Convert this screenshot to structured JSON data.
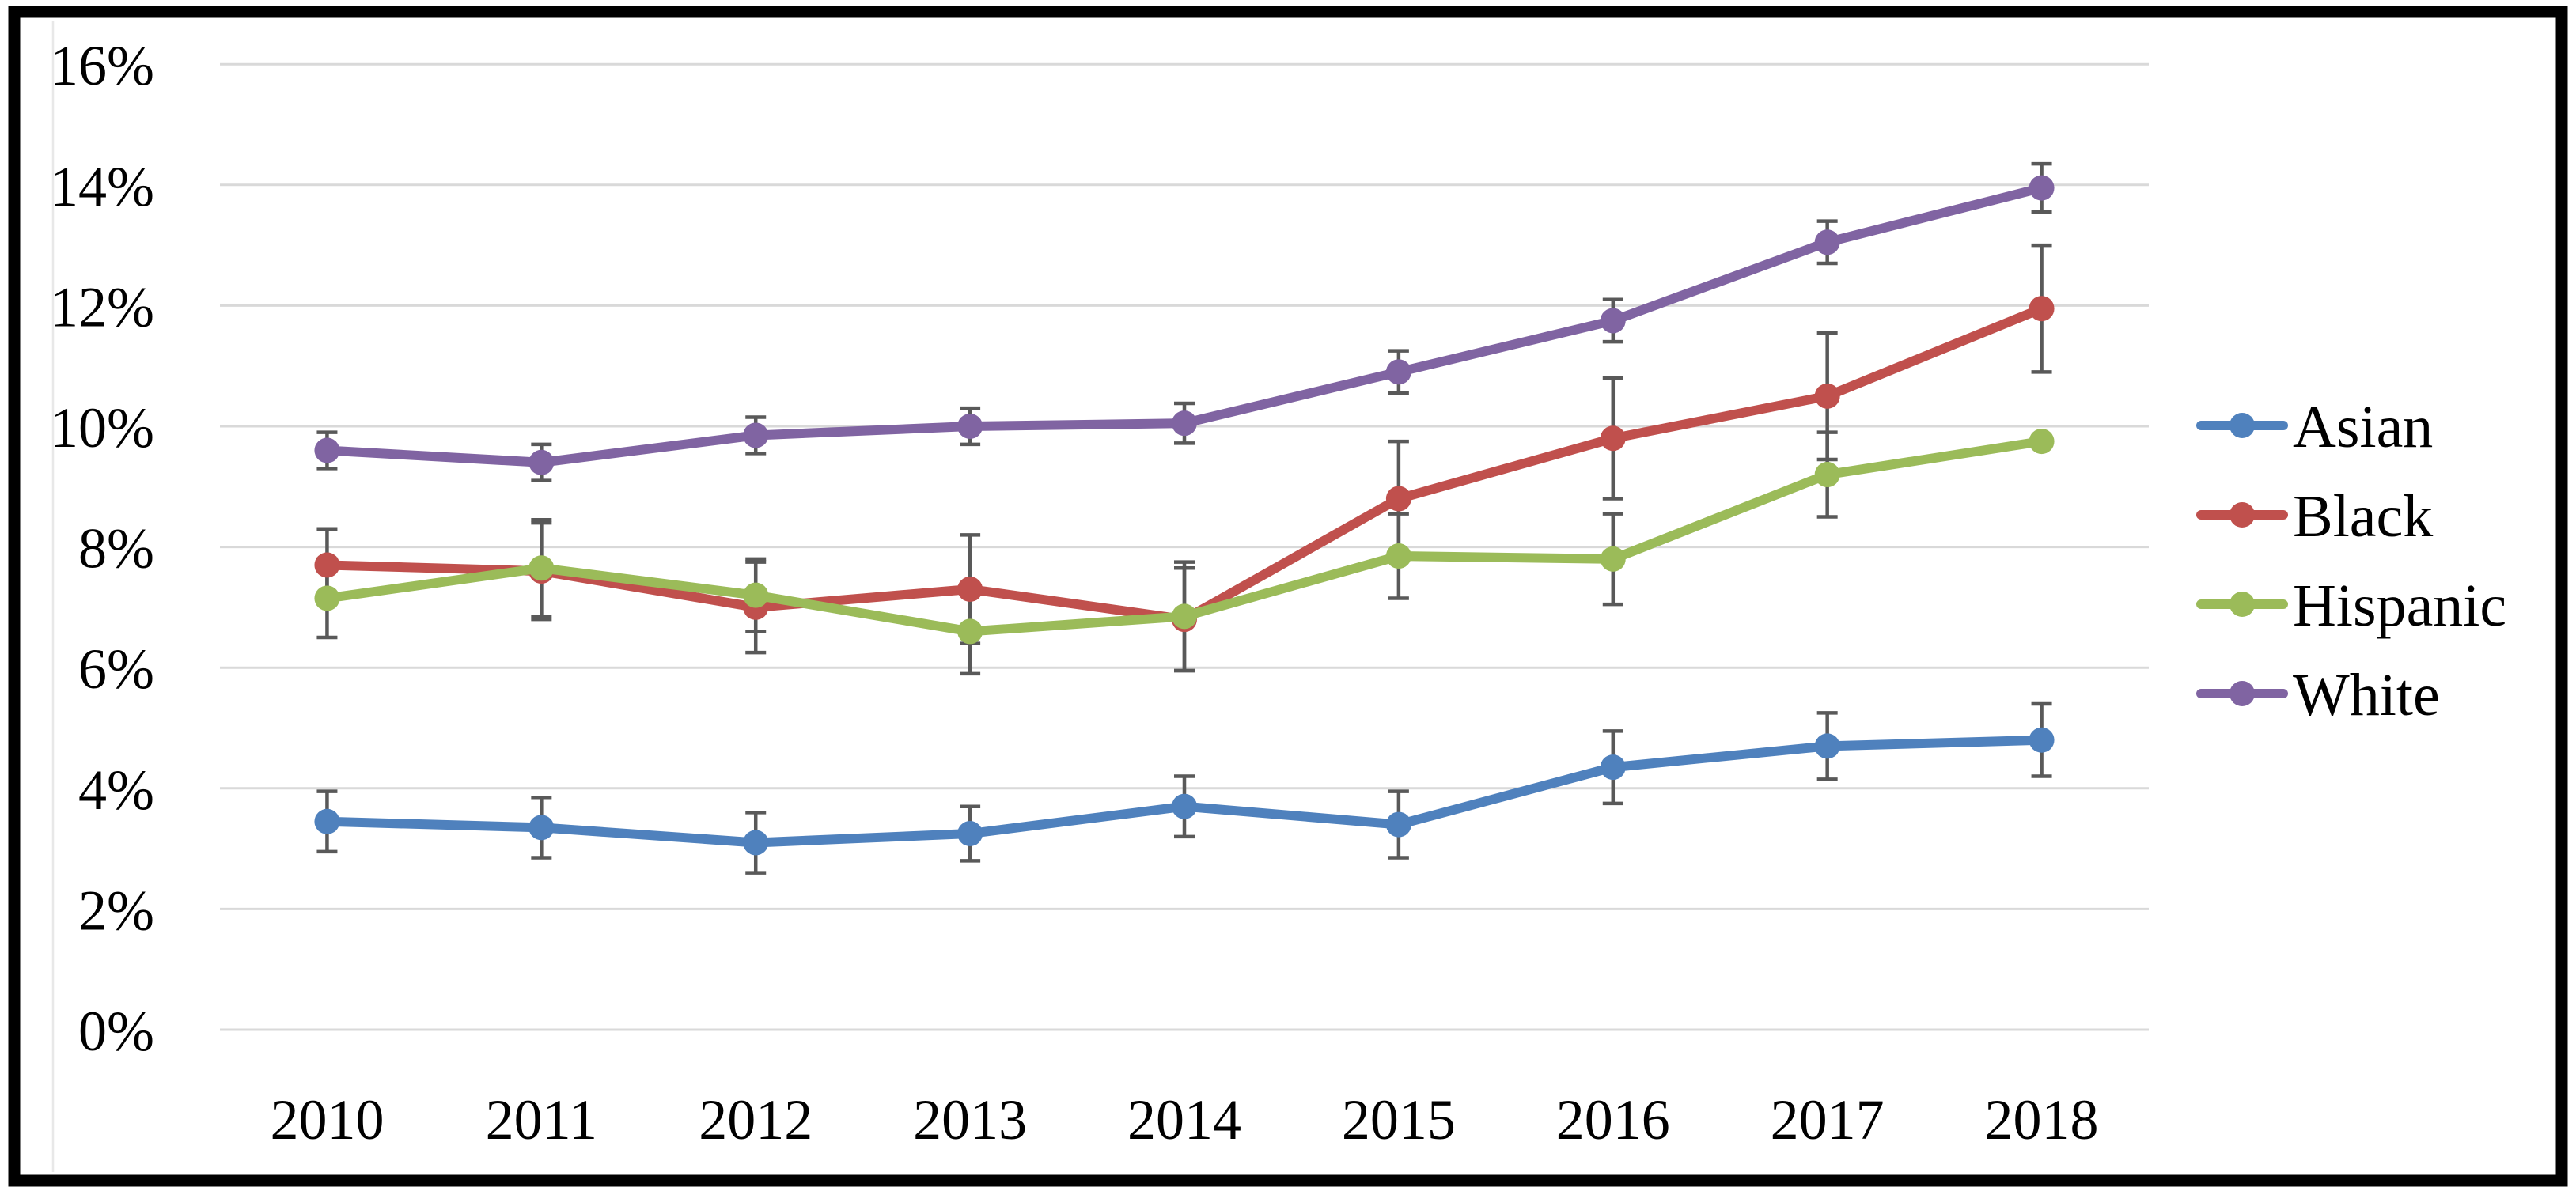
{
  "chart_data": {
    "type": "line",
    "title": "",
    "xlabel": "",
    "ylabel": "",
    "x": [
      "2010",
      "2011",
      "2012",
      "2013",
      "2014",
      "2015",
      "2016",
      "2017",
      "2018"
    ],
    "ylim": [
      0,
      16
    ],
    "ytick_step": 2,
    "y_tick_labels": [
      "0%",
      "2%",
      "4%",
      "6%",
      "8%",
      "10%",
      "12%",
      "14%",
      "16%"
    ],
    "grid": true,
    "legend_position": "right",
    "marker": "circle",
    "error_bars": true,
    "series": [
      {
        "name": "Asian",
        "color": "#4F81BD",
        "values": [
          3.45,
          3.35,
          3.1,
          3.25,
          3.7,
          3.4,
          4.35,
          4.7,
          4.8
        ],
        "error": [
          0.5,
          0.5,
          0.5,
          0.45,
          0.5,
          0.55,
          0.6,
          0.55,
          0.6
        ]
      },
      {
        "name": "Black",
        "color": "#C0504D",
        "values": [
          7.7,
          7.6,
          7.0,
          7.3,
          6.8,
          8.8,
          9.8,
          10.5,
          11.95
        ],
        "error": [
          0.6,
          0.8,
          0.75,
          0.9,
          0.85,
          0.95,
          1.0,
          1.05,
          1.05
        ]
      },
      {
        "name": "Hispanic",
        "color": "#9BBB59",
        "values": [
          7.15,
          7.65,
          7.2,
          6.6,
          6.85,
          7.85,
          7.8,
          9.2,
          9.75
        ],
        "error": [
          0.65,
          0.8,
          0.6,
          0.7,
          0.9,
          0.7,
          0.75,
          0.7,
          0
        ]
      },
      {
        "name": "White",
        "color": "#8064A2",
        "values": [
          9.6,
          9.4,
          9.85,
          10.0,
          10.05,
          10.9,
          11.75,
          13.05,
          13.95
        ],
        "error": [
          0.3,
          0.3,
          0.3,
          0.3,
          0.33,
          0.35,
          0.35,
          0.35,
          0.4
        ]
      }
    ],
    "colors": {
      "gridline": "#D9D9D9",
      "error_bar": "#595959",
      "text": "#000000",
      "frame_border": "#000000",
      "chart_edge": "#E8E8E8",
      "background": "#FFFFFF"
    }
  }
}
